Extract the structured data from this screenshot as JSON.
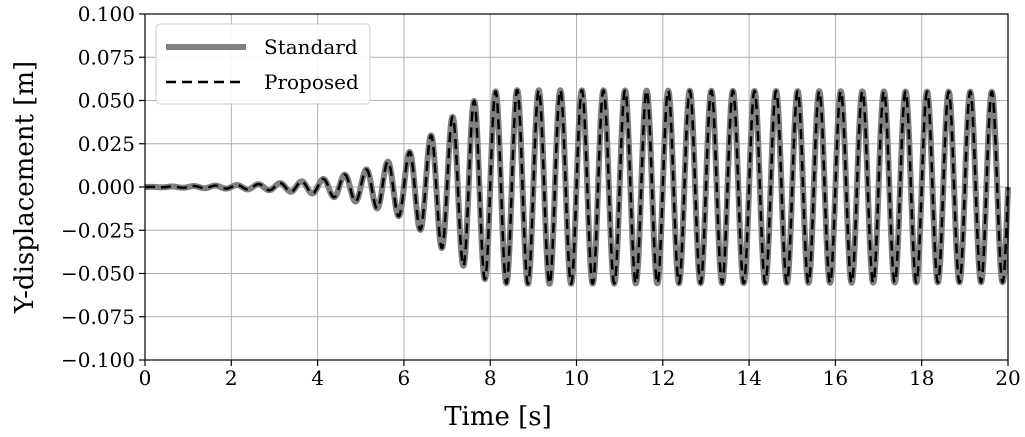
{
  "chart_data": {
    "type": "line",
    "title": "",
    "xlabel": "Time [s]",
    "ylabel": "Y-displacement [m]",
    "xlim": [
      0,
      20
    ],
    "ylim": [
      -0.1,
      0.1
    ],
    "grid": true,
    "legend_position": "top-left",
    "x_ticks": [
      "0",
      "2",
      "4",
      "6",
      "8",
      "10",
      "12",
      "14",
      "16",
      "18",
      "20"
    ],
    "y_ticks": [
      "0.100",
      "0.075",
      "0.050",
      "0.025",
      "0.000",
      "−0.025",
      "−0.050",
      "−0.075",
      "−0.100"
    ],
    "series": [
      {
        "name": "Standard",
        "style": "solid",
        "color": "#808080",
        "envelope_peaks": [
          [
            0.0,
            0.0
          ],
          [
            1.0,
            0.0005
          ],
          [
            2.0,
            0.001
          ],
          [
            3.0,
            0.002
          ],
          [
            4.0,
            0.004
          ],
          [
            5.0,
            0.009
          ],
          [
            6.0,
            0.018
          ],
          [
            6.5,
            0.027
          ],
          [
            7.0,
            0.038
          ],
          [
            7.5,
            0.048
          ],
          [
            8.0,
            0.055
          ],
          [
            8.6,
            0.056
          ],
          [
            20.0,
            0.055
          ]
        ],
        "frequency_hz": 2.0
      },
      {
        "name": "Proposed",
        "style": "dashed",
        "color": "#000000",
        "envelope_peaks": [
          [
            0.0,
            0.0
          ],
          [
            1.0,
            0.0005
          ],
          [
            2.0,
            0.001
          ],
          [
            3.0,
            0.002
          ],
          [
            4.0,
            0.004
          ],
          [
            5.0,
            0.009
          ],
          [
            6.0,
            0.018
          ],
          [
            6.5,
            0.027
          ],
          [
            7.0,
            0.038
          ],
          [
            7.5,
            0.048
          ],
          [
            8.0,
            0.055
          ],
          [
            8.6,
            0.056
          ],
          [
            20.0,
            0.055
          ]
        ],
        "frequency_hz": 2.0
      }
    ]
  }
}
